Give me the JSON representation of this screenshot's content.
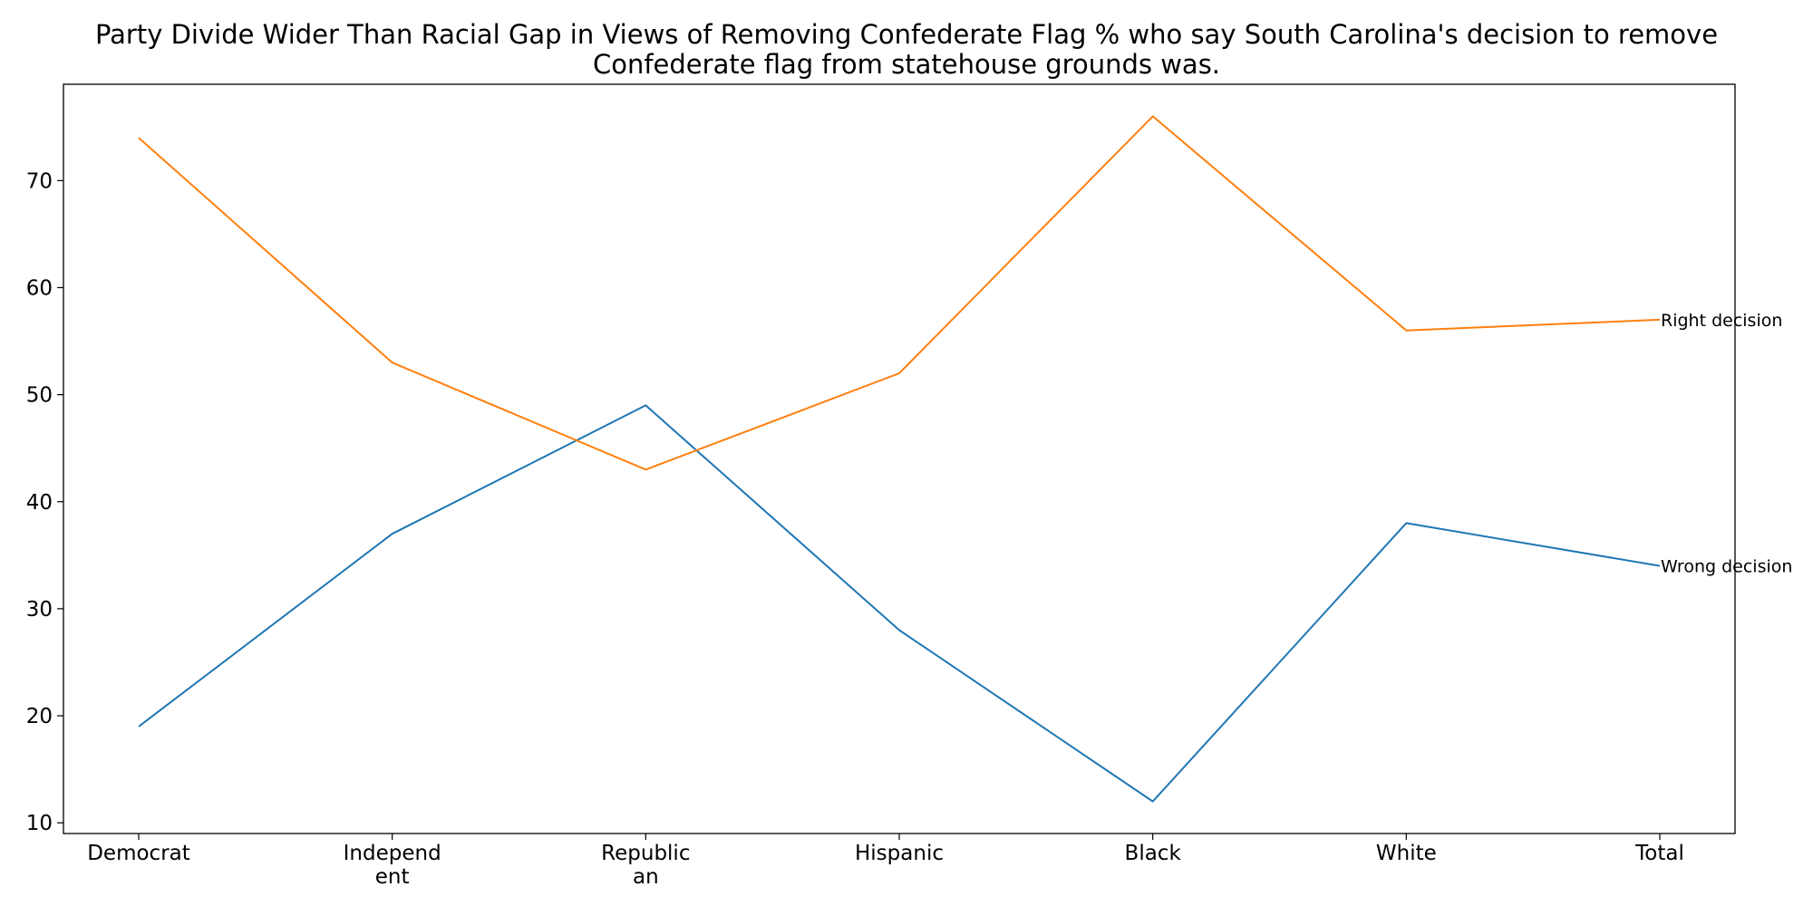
{
  "chart_data": {
    "type": "line",
    "title": "Party Divide Wider Than Racial Gap in Views of Removing Confederate Flag % who say South Carolina's decision to remove\nConfederate flag from statehouse grounds was.",
    "xlabel": "",
    "ylabel": "",
    "categories": [
      "Democrat",
      "Independ\nent",
      "Republic\nan",
      "Hispanic",
      "Black",
      "White",
      "Total"
    ],
    "ylim": [
      9,
      79
    ],
    "yticks": [
      10,
      20,
      30,
      40,
      50,
      60,
      70
    ],
    "grid": false,
    "legend": "none",
    "series": [
      {
        "name": "Wrong decision",
        "color": "#1f77b4",
        "values": [
          19,
          37,
          49,
          28,
          12,
          38,
          34
        ]
      },
      {
        "name": "Right decision",
        "color": "#ff7f0e",
        "values": [
          74,
          53,
          43,
          52,
          76,
          56,
          57
        ]
      }
    ]
  }
}
